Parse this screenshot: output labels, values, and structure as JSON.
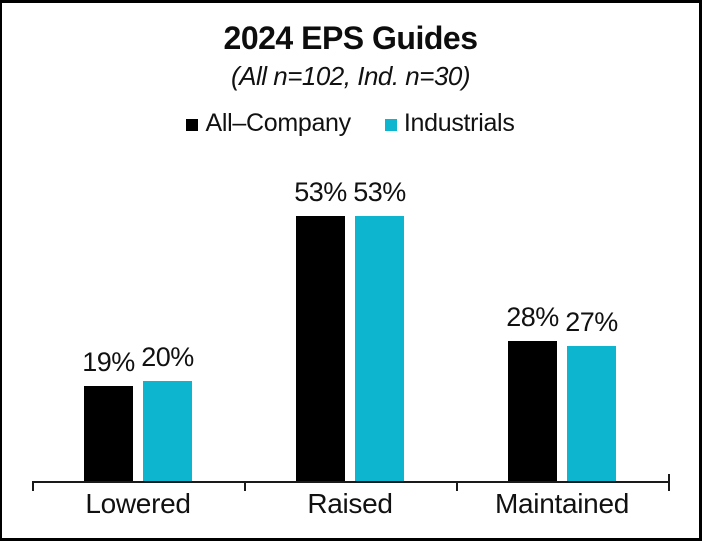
{
  "frame": {
    "background": "#ffffff",
    "border_color": "#000000"
  },
  "chart_data": {
    "type": "bar",
    "title": "2024 EPS Guides",
    "subtitle": "(All n=102, Ind. n=30)",
    "categories": [
      "Lowered",
      "Raised",
      "Maintained"
    ],
    "series": [
      {
        "name": "All–Company",
        "color": "#000000",
        "values": [
          19,
          53,
          28
        ],
        "labels": [
          "19%",
          "53%",
          "28%"
        ]
      },
      {
        "name": "Industrials",
        "color": "#0db6ce",
        "values": [
          20,
          53,
          27
        ],
        "labels": [
          "20%",
          "53%",
          "27%"
        ]
      }
    ],
    "ylim": [
      0,
      60
    ],
    "unit": "%",
    "grid": false,
    "y_axis_visible": false,
    "value_labels_visible": true,
    "legend_position": "top",
    "axis_color": "#1a1a1a",
    "text_color": "#111111"
  }
}
